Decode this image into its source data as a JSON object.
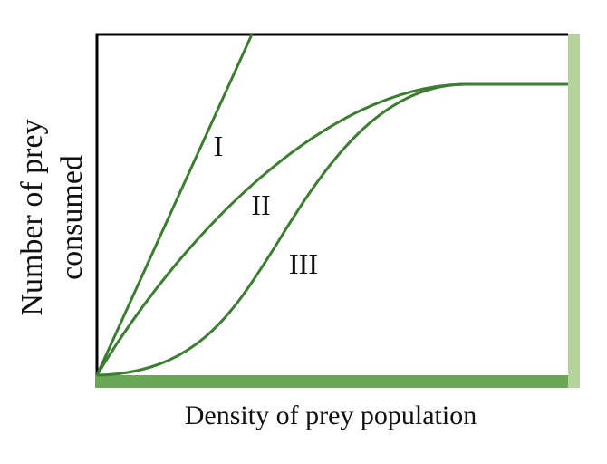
{
  "x_axis": {
    "label": "Density of prey population"
  },
  "y_axis": {
    "label_lines": [
      "Number of prey",
      "consumed"
    ]
  },
  "curves": [
    {
      "label": "I"
    },
    {
      "label": "II"
    },
    {
      "label": "III"
    }
  ]
}
